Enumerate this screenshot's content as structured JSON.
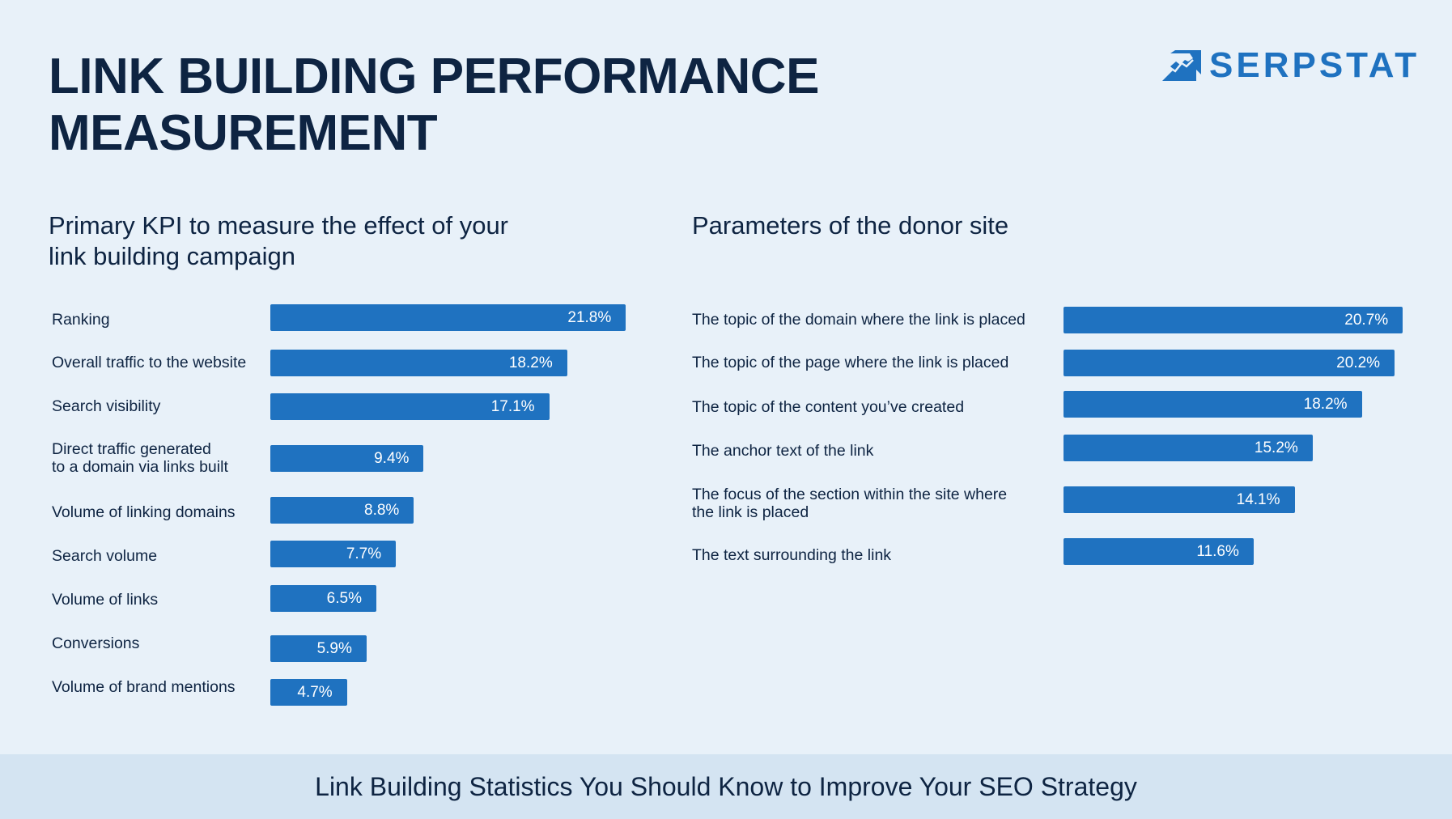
{
  "title_lines": [
    "LINK BUILDING PERFORMANCE",
    "MEASUREMENT"
  ],
  "logo": {
    "text": "SERPSTAT",
    "icon": "chart-arrow-icon"
  },
  "colors": {
    "bar": "#1f72c0",
    "background": "#e8f1f9",
    "text": "#0e2442",
    "footer": "#d4e4f2"
  },
  "chart_data": [
    {
      "type": "bar",
      "orientation": "horizontal",
      "title": "Primary KPI to measure the effect of your link building campaign",
      "categories": [
        "Ranking",
        "Overall traffic to the website",
        "Search visibility",
        "Direct traffic generated\nto a domain via links built",
        "Volume of linking domains",
        "Search volume",
        "Volume of links",
        "Conversions",
        "Volume of brand mentions"
      ],
      "values": [
        21.8,
        18.2,
        17.1,
        9.4,
        8.8,
        7.7,
        6.5,
        5.9,
        4.7
      ],
      "value_labels": [
        "21.8%",
        "18.2%",
        "17.1%",
        "9.4%",
        "8.8%",
        "7.7%",
        "6.5%",
        "5.9%",
        "4.7%"
      ],
      "grid": false
    },
    {
      "type": "bar",
      "orientation": "horizontal",
      "title": "Parameters of the donor site",
      "categories": [
        "The topic of the domain where the link is placed",
        "The topic of the page where the link is placed",
        "The topic of the content you’ve created",
        "The anchor text of the link",
        "The focus of the section within the site where\nthe link is placed",
        "The text surrounding the link"
      ],
      "values": [
        20.7,
        20.2,
        18.2,
        15.2,
        14.1,
        11.6
      ],
      "value_labels": [
        "20.7%",
        "20.2%",
        "18.2%",
        "15.2%",
        "14.1%",
        "11.6%"
      ],
      "grid": false
    }
  ],
  "footer": {
    "text": "Link Building Statistics You Should Know to Improve Your SEO Strategy"
  }
}
